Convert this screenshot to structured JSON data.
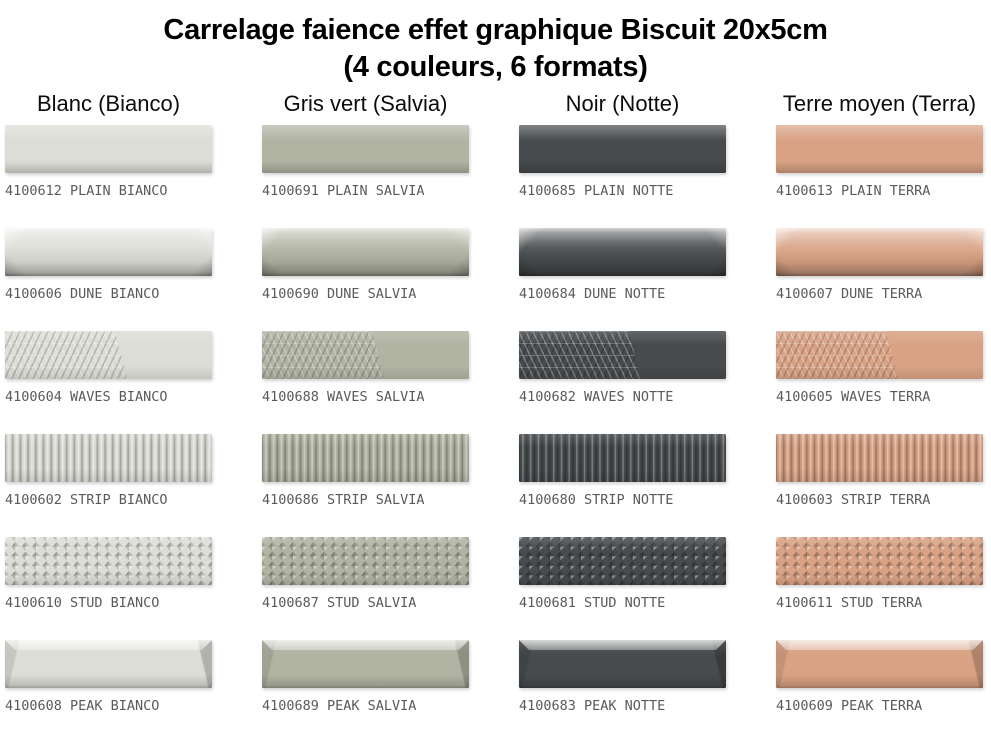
{
  "title": {
    "line1": "Carrelage faience effet graphique Biscuit 20x5cm",
    "line2": "(4 couleurs, 6 formats)"
  },
  "columns": [
    {
      "label": "Blanc (Bianco)",
      "color_name": "BIANCO",
      "tile_color": "#dcddd6"
    },
    {
      "label": "Gris vert (Salvia)",
      "color_name": "SALVIA",
      "tile_color": "#b1b4a3"
    },
    {
      "label": "Noir (Notte)",
      "color_name": "NOTTE",
      "tile_color": "#474b4d"
    },
    {
      "label": "Terre moyen (Terra)",
      "color_name": "TERRA",
      "tile_color": "#d9a284"
    }
  ],
  "rows": [
    {
      "format": "PLAIN",
      "texture": "plain",
      "labels": [
        "4100612 PLAIN BIANCO",
        "4100691 PLAIN SALVIA",
        "4100685 PLAIN NOTTE",
        "4100613 PLAIN TERRA"
      ]
    },
    {
      "format": "DUNE",
      "texture": "dune",
      "labels": [
        "4100606 DUNE BIANCO",
        "4100690 DUNE SALVIA",
        "4100684 DUNE NOTTE",
        "4100607 DUNE TERRA"
      ]
    },
    {
      "format": "WAVES",
      "texture": "waves",
      "labels": [
        "4100604 WAVES BIANCO",
        "4100688 WAVES SALVIA",
        "4100682 WAVES NOTTE",
        "4100605 WAVES TERRA"
      ]
    },
    {
      "format": "STRIP",
      "texture": "strip",
      "labels": [
        "4100602 STRIP BIANCO",
        "4100686 STRIP SALVIA",
        "4100680 STRIP NOTTE",
        "4100603 STRIP TERRA"
      ]
    },
    {
      "format": "STUD",
      "texture": "stud",
      "labels": [
        "4100610 STUD BIANCO",
        "4100687 STUD SALVIA",
        "4100681 STUD NOTTE",
        "4100611 STUD TERRA"
      ]
    },
    {
      "format": "PEAK",
      "texture": "peak",
      "labels": [
        "4100608 PEAK BIANCO",
        "4100689 PEAK SALVIA",
        "4100683 PEAK NOTTE",
        "4100609 PEAK TERRA"
      ]
    }
  ]
}
